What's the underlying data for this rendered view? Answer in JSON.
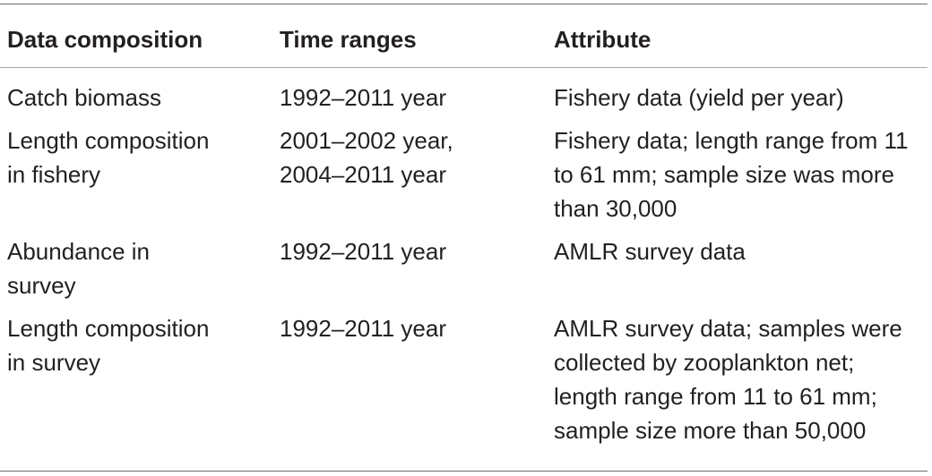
{
  "table": {
    "headers": [
      "Data composition",
      "Time ranges",
      "Attribute"
    ],
    "rows": [
      {
        "composition": "Catch biomass",
        "time_ranges": "1992–2011 year",
        "attribute": "Fishery data (yield per year)"
      },
      {
        "composition": "Length composition\nin fishery",
        "time_ranges": "2001–2002 year,\n2004–2011 year",
        "attribute": "Fishery data; length range from 11\nto 61 mm; sample size was more\nthan 30,000"
      },
      {
        "composition": "Abundance in\nsurvey",
        "time_ranges": "1992–2011 year",
        "attribute": "AMLR survey data"
      },
      {
        "composition": "Length composition\nin survey",
        "time_ranges": "1992–2011 year",
        "attribute": "AMLR survey data; samples were\ncollected by zooplankton net;\nlength range from 11 to 61 mm;\nsample size more than 50,000"
      }
    ]
  }
}
